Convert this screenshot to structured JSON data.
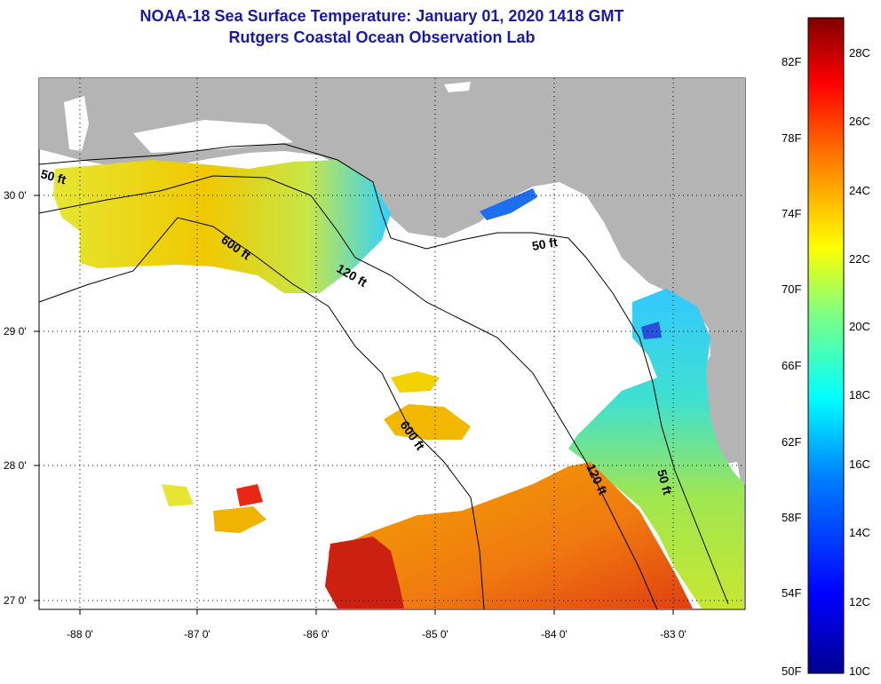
{
  "header": {
    "title": "NOAA-18 Sea Surface Temperature:  January 01, 2020 1418 GMT",
    "subtitle": "Rutgers Coastal Ocean Observation Lab"
  },
  "map": {
    "lon_ticks": [
      "-88 0'",
      "-87 0'",
      "-86 0'",
      "-85 0'",
      "-84 0'",
      "-83 0'"
    ],
    "lat_ticks": [
      "30 0'",
      "29 0'",
      "28 0'",
      "27 0'"
    ],
    "contour_labels": [
      "50 ft",
      "600 ft",
      "120 ft",
      "50 ft",
      "600 ft",
      "120 ft",
      "50 ft"
    ],
    "colors": {
      "land": "#b4b4b4",
      "water_nodata": "#ffffff"
    }
  },
  "colorbar": {
    "fahrenheit": [
      "82F",
      "78F",
      "74F",
      "70F",
      "66F",
      "62F",
      "58F",
      "54F",
      "50F"
    ],
    "celsius": [
      "28C",
      "26C",
      "24C",
      "22C",
      "20C",
      "18C",
      "16C",
      "14C",
      "12C",
      "10C"
    ],
    "colors": [
      "#00008f",
      "#0000ff",
      "#0080ff",
      "#00ffff",
      "#80ff80",
      "#ffff00",
      "#ff8000",
      "#ff0000",
      "#800000"
    ]
  }
}
